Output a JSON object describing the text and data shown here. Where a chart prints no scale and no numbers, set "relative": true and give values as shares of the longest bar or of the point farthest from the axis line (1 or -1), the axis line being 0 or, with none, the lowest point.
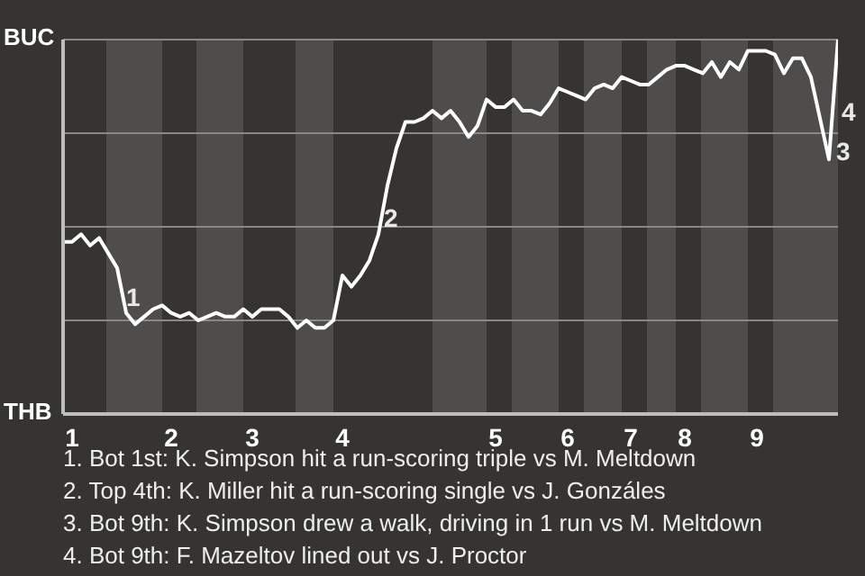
{
  "chart_data": {
    "type": "line",
    "relative": true,
    "categories": [
      null,
      "1",
      null,
      null,
      null,
      null,
      null,
      null,
      null,
      null,
      null,
      null,
      "2",
      null,
      null,
      null,
      null,
      null,
      null,
      null,
      null,
      "3",
      null,
      null,
      null,
      null,
      null,
      null,
      null,
      null,
      null,
      "4",
      null,
      null,
      null,
      null,
      null,
      null,
      null,
      null,
      null,
      null,
      null,
      null,
      null,
      null,
      null,
      null,
      "5",
      null,
      null,
      null,
      null,
      null,
      null,
      null,
      "6",
      null,
      null,
      null,
      null,
      null,
      null,
      "7",
      null,
      null,
      null,
      null,
      null,
      "8",
      null,
      null,
      null,
      null,
      null,
      null,
      null,
      "9",
      null,
      null,
      null,
      null,
      null,
      null,
      null,
      null,
      null
    ],
    "series": [
      {
        "color": "#ffffff",
        "values": [
          0.46,
          0.46,
          0.48,
          0.45,
          0.47,
          0.43,
          0.39,
          0.27,
          0.24,
          0.26,
          0.28,
          0.29,
          0.27,
          0.26,
          0.27,
          0.25,
          0.26,
          0.27,
          0.26,
          0.26,
          0.28,
          0.26,
          0.28,
          0.28,
          0.28,
          0.26,
          0.23,
          0.25,
          0.23,
          0.23,
          0.25,
          0.37,
          0.34,
          0.37,
          0.41,
          0.48,
          0.61,
          0.71,
          0.78,
          0.78,
          0.79,
          0.81,
          0.79,
          0.81,
          0.78,
          0.74,
          0.77,
          0.84,
          0.82,
          0.82,
          0.84,
          0.81,
          0.81,
          0.8,
          0.83,
          0.87,
          0.86,
          0.85,
          0.84,
          0.87,
          0.88,
          0.87,
          0.9,
          0.89,
          0.88,
          0.88,
          0.9,
          0.92,
          0.93,
          0.93,
          0.92,
          0.91,
          0.94,
          0.9,
          0.94,
          0.92,
          0.97,
          0.97,
          0.97,
          0.96,
          0.91,
          0.95,
          0.95,
          0.9,
          0.79,
          0.68,
          1
        ]
      }
    ],
    "grid": "y",
    "marker": "none",
    "line_style": "solid",
    "annotations": [
      "BUC",
      "THB",
      "1",
      "2",
      "3",
      "4",
      "1. Bot 1st: K. Simpson hit a run-scoring triple vs M. Meltdown",
      "2. Top 4th: K. Miller hit a run-scoring single vs J. Gonzáles",
      "3. Bot 9th: K. Simpson drew a walk, driving in 1 run vs M. Meltdown",
      "4. Bot 9th: F. Mazeltov lined out vs J. Proctor"
    ]
  }
}
